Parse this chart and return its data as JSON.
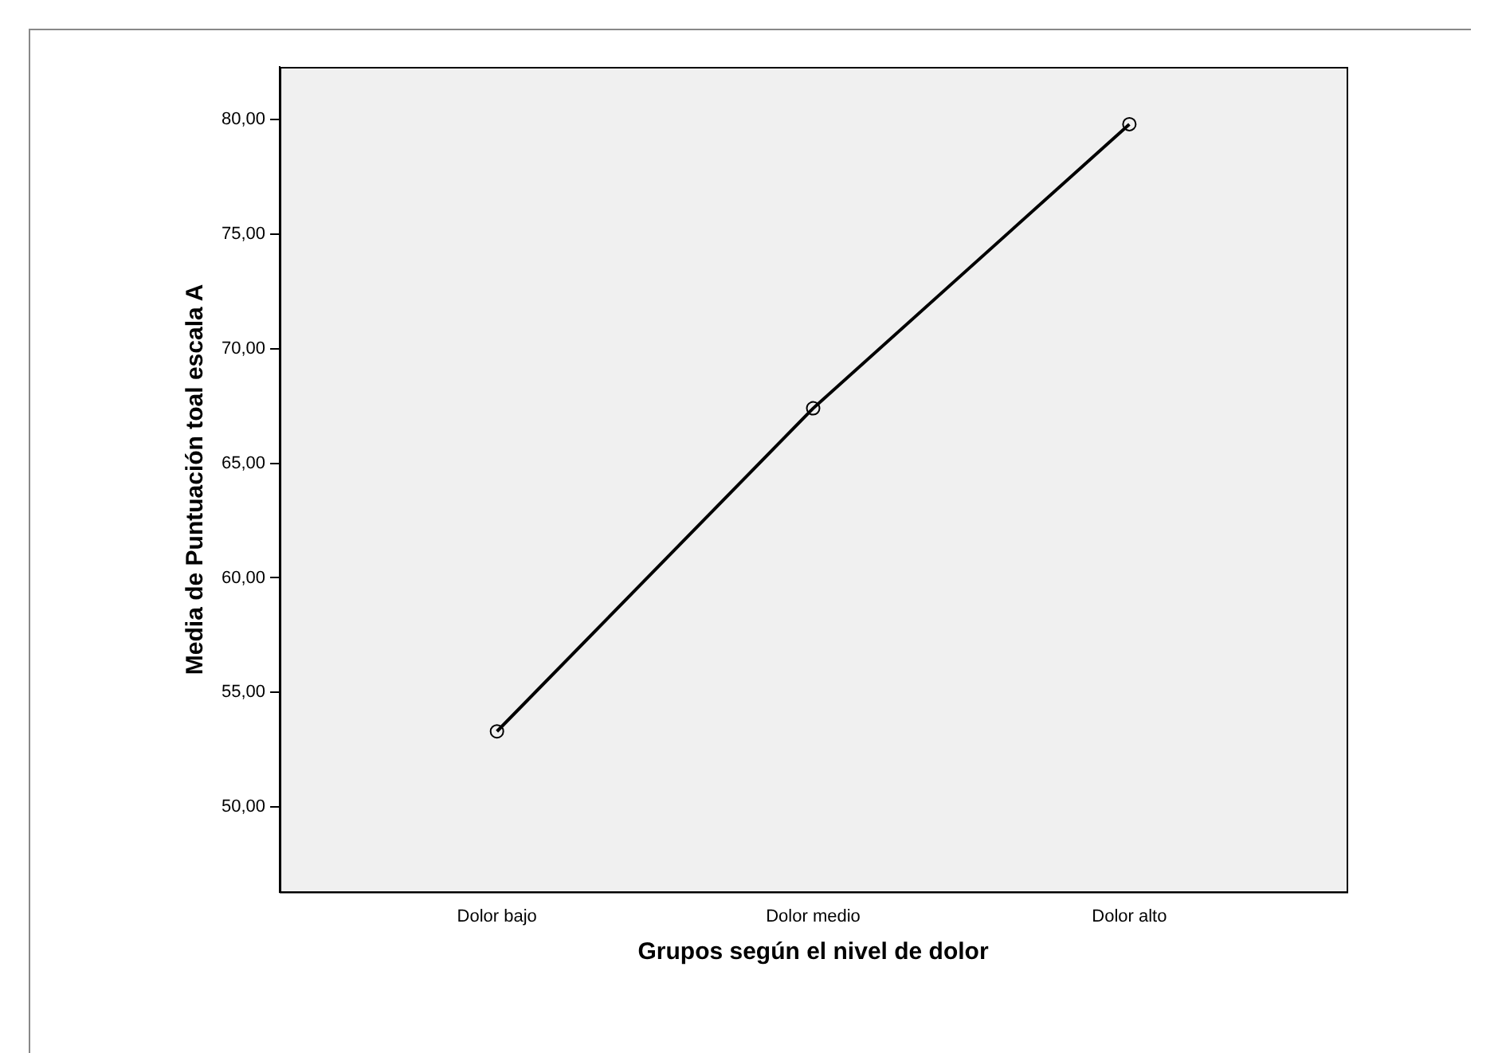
{
  "chart_data": {
    "type": "line",
    "xlabel": "Grupos según el nivel de dolor",
    "ylabel": "Media de Puntuación toal escala A",
    "categories": [
      "Dolor bajo",
      "Dolor medio",
      "Dolor alto"
    ],
    "series": [
      {
        "color": "#000000",
        "values": [
          53.3,
          67.4,
          79.8
        ]
      }
    ],
    "ylim": [
      46.3,
      82.3
    ],
    "yticks": [
      {
        "value": 50,
        "label": "50,00"
      },
      {
        "value": 55,
        "label": "55,00"
      },
      {
        "value": 60,
        "label": "60,00"
      },
      {
        "value": 65,
        "label": "65,00"
      },
      {
        "value": 70,
        "label": "70,00"
      },
      {
        "value": 75,
        "label": "75,00"
      },
      {
        "value": 80,
        "label": "80,00"
      }
    ],
    "grid": false,
    "legend": false,
    "marker": "circle",
    "line_style": "solid"
  }
}
